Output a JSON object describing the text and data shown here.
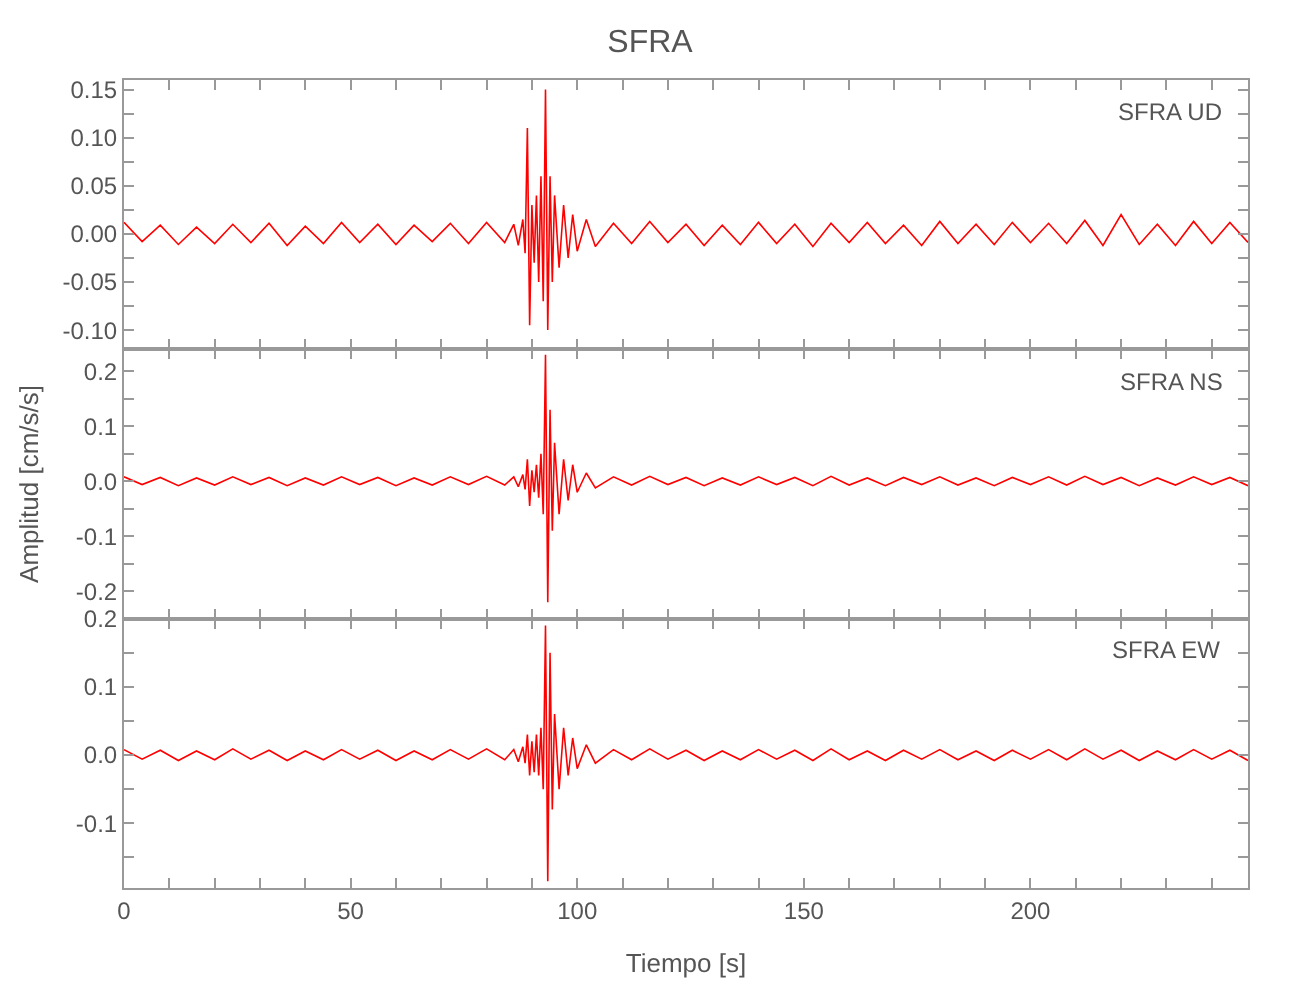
{
  "chart_data": [
    {
      "type": "line",
      "title": "SFRA",
      "annotations": [
        "SFRA UD"
      ],
      "tick_labels": "y",
      "x": [
        0,
        4,
        8,
        12,
        16,
        20,
        24,
        28,
        32,
        36,
        40,
        44,
        48,
        52,
        56,
        60,
        64,
        68,
        72,
        76,
        80,
        84,
        86,
        87,
        88,
        88.5,
        89,
        89.5,
        90,
        90.5,
        91,
        91.5,
        92,
        92.5,
        93,
        93.5,
        94,
        94.5,
        95,
        96,
        97,
        98,
        99,
        100,
        102,
        104,
        108,
        112,
        116,
        120,
        124,
        128,
        132,
        136,
        140,
        144,
        148,
        152,
        156,
        160,
        164,
        168,
        172,
        176,
        180,
        184,
        188,
        192,
        196,
        200,
        204,
        208,
        212,
        216,
        220,
        224,
        228,
        232,
        236,
        240,
        244,
        248
      ],
      "series": [
        {
          "color": "#ff0000",
          "values": [
            0.012,
            -0.008,
            0.009,
            -0.011,
            0.007,
            -0.01,
            0.01,
            -0.009,
            0.011,
            -0.012,
            0.008,
            -0.01,
            0.012,
            -0.009,
            0.01,
            -0.011,
            0.009,
            -0.008,
            0.011,
            -0.01,
            0.012,
            -0.009,
            0.01,
            -0.012,
            0.015,
            -0.02,
            0.11,
            -0.095,
            0.03,
            -0.03,
            0.04,
            -0.05,
            0.06,
            -0.07,
            0.15,
            -0.1,
            0.06,
            -0.05,
            0.04,
            -0.035,
            0.03,
            -0.025,
            0.02,
            -0.018,
            0.015,
            -0.013,
            0.011,
            -0.01,
            0.013,
            -0.009,
            0.01,
            -0.012,
            0.009,
            -0.011,
            0.012,
            -0.01,
            0.01,
            -0.013,
            0.011,
            -0.009,
            0.012,
            -0.01,
            0.009,
            -0.012,
            0.013,
            -0.01,
            0.01,
            -0.011,
            0.012,
            -0.009,
            0.011,
            -0.01,
            0.014,
            -0.012,
            0.02,
            -0.011,
            0.01,
            -0.012,
            0.013,
            -0.01,
            0.012,
            -0.009
          ]
        }
      ],
      "xlim": [
        0,
        248
      ],
      "xticks": [
        0,
        {
          "value": 10,
          "label": null
        },
        {
          "value": 20,
          "label": null
        },
        {
          "value": 30,
          "label": null
        },
        {
          "value": 40,
          "label": null
        },
        50,
        {
          "value": 60,
          "label": null
        },
        {
          "value": 70,
          "label": null
        },
        {
          "value": 80,
          "label": null
        },
        {
          "value": 90,
          "label": null
        },
        100,
        {
          "value": 110,
          "label": null
        },
        {
          "value": 120,
          "label": null
        },
        {
          "value": 130,
          "label": null
        },
        {
          "value": 140,
          "label": null
        },
        150,
        {
          "value": 160,
          "label": null
        },
        {
          "value": 170,
          "label": null
        },
        {
          "value": 180,
          "label": null
        },
        {
          "value": 190,
          "label": null
        },
        200,
        {
          "value": 210,
          "label": null
        },
        {
          "value": 220,
          "label": null
        },
        {
          "value": 230,
          "label": null
        },
        {
          "value": 240,
          "label": null
        }
      ],
      "ylim": [
        -0.12,
        0.16
      ],
      "yticks": [
        {
          "value": -0.1,
          "label": "-0.10"
        },
        {
          "value": -0.075,
          "label": null
        },
        {
          "value": -0.05,
          "label": "-0.05"
        },
        {
          "value": -0.025,
          "label": null
        },
        {
          "value": 0,
          "label": "0.00"
        },
        {
          "value": 0.025,
          "label": null
        },
        {
          "value": 0.05,
          "label": "0.05"
        },
        {
          "value": 0.075,
          "label": null
        },
        {
          "value": 0.1,
          "label": "0.10"
        },
        {
          "value": 0.125,
          "label": null
        },
        {
          "value": 0.15,
          "label": "0.15"
        }
      ]
    },
    {
      "type": "line",
      "ylabel": "Amplitud [cm/s/s]",
      "annotations": [
        "SFRA NS"
      ],
      "tick_labels": "y",
      "x": [
        0,
        4,
        8,
        12,
        16,
        20,
        24,
        28,
        32,
        36,
        40,
        44,
        48,
        52,
        56,
        60,
        64,
        68,
        72,
        76,
        80,
        84,
        86,
        87,
        88,
        88.5,
        89,
        89.5,
        90,
        90.5,
        91,
        91.5,
        92,
        92.5,
        93,
        93.5,
        94,
        94.5,
        95,
        96,
        97,
        98,
        99,
        100,
        102,
        104,
        108,
        112,
        116,
        120,
        124,
        128,
        132,
        136,
        140,
        144,
        148,
        152,
        156,
        160,
        164,
        168,
        172,
        176,
        180,
        184,
        188,
        192,
        196,
        200,
        204,
        208,
        212,
        216,
        220,
        224,
        228,
        232,
        236,
        240,
        244,
        248
      ],
      "series": [
        {
          "color": "#ff0000",
          "values": [
            0.008,
            -0.006,
            0.007,
            -0.008,
            0.006,
            -0.007,
            0.008,
            -0.006,
            0.007,
            -0.008,
            0.006,
            -0.007,
            0.008,
            -0.006,
            0.007,
            -0.008,
            0.006,
            -0.007,
            0.008,
            -0.006,
            0.009,
            -0.007,
            0.008,
            -0.01,
            0.012,
            -0.015,
            0.04,
            -0.045,
            0.02,
            -0.02,
            0.03,
            -0.03,
            0.05,
            -0.06,
            0.23,
            -0.22,
            0.13,
            -0.09,
            0.07,
            -0.06,
            0.04,
            -0.035,
            0.03,
            -0.02,
            0.015,
            -0.012,
            0.008,
            -0.007,
            0.009,
            -0.006,
            0.007,
            -0.008,
            0.006,
            -0.007,
            0.008,
            -0.006,
            0.007,
            -0.008,
            0.009,
            -0.007,
            0.006,
            -0.008,
            0.007,
            -0.006,
            0.008,
            -0.007,
            0.006,
            -0.008,
            0.007,
            -0.006,
            0.008,
            -0.007,
            0.009,
            -0.006,
            0.007,
            -0.008,
            0.006,
            -0.007,
            0.008,
            -0.006,
            0.007,
            -0.008
          ]
        }
      ],
      "xlim": [
        0,
        248
      ],
      "xticks": [
        0,
        {
          "value": 10,
          "label": null
        },
        {
          "value": 20,
          "label": null
        },
        {
          "value": 30,
          "label": null
        },
        {
          "value": 40,
          "label": null
        },
        50,
        {
          "value": 60,
          "label": null
        },
        {
          "value": 70,
          "label": null
        },
        {
          "value": 80,
          "label": null
        },
        {
          "value": 90,
          "label": null
        },
        100,
        {
          "value": 110,
          "label": null
        },
        {
          "value": 120,
          "label": null
        },
        {
          "value": 130,
          "label": null
        },
        {
          "value": 140,
          "label": null
        },
        150,
        {
          "value": 160,
          "label": null
        },
        {
          "value": 170,
          "label": null
        },
        {
          "value": 180,
          "label": null
        },
        {
          "value": 190,
          "label": null
        },
        200,
        {
          "value": 210,
          "label": null
        },
        {
          "value": 220,
          "label": null
        },
        {
          "value": 230,
          "label": null
        },
        {
          "value": 240,
          "label": null
        }
      ],
      "ylim": [
        -0.25,
        0.24
      ],
      "yticks": [
        {
          "value": -0.2,
          "label": "-0.2"
        },
        {
          "value": -0.15,
          "label": null
        },
        {
          "value": -0.1,
          "label": "-0.1"
        },
        {
          "value": -0.05,
          "label": null
        },
        {
          "value": 0,
          "label": "0.0"
        },
        {
          "value": 0.05,
          "label": null
        },
        {
          "value": 0.1,
          "label": "0.1"
        },
        {
          "value": 0.15,
          "label": null
        },
        {
          "value": 0.2,
          "label": "0.2"
        }
      ]
    },
    {
      "type": "line",
      "xlabel": "Tiempo [s]",
      "annotations": [
        "SFRA EW"
      ],
      "x": [
        0,
        4,
        8,
        12,
        16,
        20,
        24,
        28,
        32,
        36,
        40,
        44,
        48,
        52,
        56,
        60,
        64,
        68,
        72,
        76,
        80,
        84,
        86,
        87,
        88,
        88.5,
        89,
        89.5,
        90,
        90.5,
        91,
        91.5,
        92,
        92.5,
        93,
        93.5,
        94,
        94.5,
        95,
        96,
        97,
        98,
        99,
        100,
        102,
        104,
        108,
        112,
        116,
        120,
        124,
        128,
        132,
        136,
        140,
        144,
        148,
        152,
        156,
        160,
        164,
        168,
        172,
        176,
        180,
        184,
        188,
        192,
        196,
        200,
        204,
        208,
        212,
        216,
        220,
        224,
        228,
        232,
        236,
        240,
        244,
        248
      ],
      "series": [
        {
          "color": "#ff0000",
          "values": [
            0.008,
            -0.006,
            0.007,
            -0.008,
            0.006,
            -0.007,
            0.009,
            -0.006,
            0.007,
            -0.008,
            0.006,
            -0.007,
            0.008,
            -0.006,
            0.007,
            -0.008,
            0.006,
            -0.007,
            0.008,
            -0.006,
            0.009,
            -0.007,
            0.008,
            -0.01,
            0.012,
            -0.012,
            0.03,
            -0.03,
            0.02,
            -0.025,
            0.03,
            -0.03,
            0.04,
            -0.05,
            0.19,
            -0.185,
            0.15,
            -0.08,
            0.06,
            -0.05,
            0.04,
            -0.03,
            0.025,
            -0.02,
            0.015,
            -0.012,
            0.008,
            -0.007,
            0.009,
            -0.006,
            0.007,
            -0.008,
            0.006,
            -0.007,
            0.008,
            -0.006,
            0.007,
            -0.008,
            0.009,
            -0.007,
            0.006,
            -0.008,
            0.007,
            -0.006,
            0.008,
            -0.007,
            0.006,
            -0.008,
            0.007,
            -0.006,
            0.008,
            -0.007,
            0.009,
            -0.006,
            0.007,
            -0.008,
            0.006,
            -0.007,
            0.008,
            -0.006,
            0.007,
            -0.008
          ]
        }
      ],
      "xlim": [
        0,
        248
      ],
      "xticks": [
        0,
        {
          "value": 10,
          "label": null
        },
        {
          "value": 20,
          "label": null
        },
        {
          "value": 30,
          "label": null
        },
        {
          "value": 40,
          "label": null
        },
        50,
        {
          "value": 60,
          "label": null
        },
        {
          "value": 70,
          "label": null
        },
        {
          "value": 80,
          "label": null
        },
        {
          "value": 90,
          "label": null
        },
        100,
        {
          "value": 110,
          "label": null
        },
        {
          "value": 120,
          "label": null
        },
        {
          "value": 130,
          "label": null
        },
        {
          "value": 140,
          "label": null
        },
        150,
        {
          "value": 160,
          "label": null
        },
        {
          "value": 170,
          "label": null
        },
        {
          "value": 180,
          "label": null
        },
        {
          "value": 190,
          "label": null
        },
        200,
        {
          "value": 210,
          "label": null
        },
        {
          "value": 220,
          "label": null
        },
        {
          "value": 230,
          "label": null
        },
        {
          "value": 240,
          "label": null
        }
      ],
      "ylim": [
        -0.195,
        0.2
      ],
      "yticks": [
        {
          "value": -0.15,
          "label": null
        },
        {
          "value": -0.1,
          "label": "-0.1"
        },
        {
          "value": -0.05,
          "label": null
        },
        {
          "value": 0,
          "label": "0.0"
        },
        {
          "value": 0.05,
          "label": null
        },
        {
          "value": 0.1,
          "label": "0.1"
        },
        {
          "value": 0.15,
          "label": null
        },
        {
          "value": 0.2,
          "label": "0.2"
        }
      ]
    }
  ]
}
